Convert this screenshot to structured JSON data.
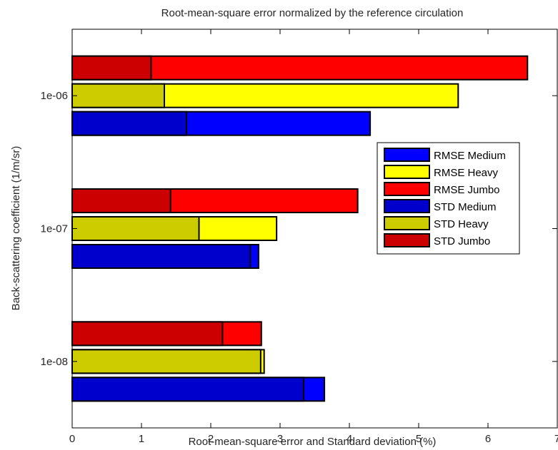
{
  "chart_data": {
    "type": "bar",
    "orientation": "horizontal",
    "title": "Root-mean-square error normalized by the reference circulation",
    "xlabel": "Root-mean-square error and Standard deviation (%)",
    "ylabel": "Back-scattering coefficient (1/m/sr)",
    "xlim": [
      0,
      7
    ],
    "xticks": [
      0,
      1,
      2,
      3,
      4,
      5,
      6,
      7
    ],
    "categories": [
      "1e-08",
      "1e-07",
      "1e-06"
    ],
    "grid": false,
    "legend_position": "right",
    "series": [
      {
        "name": "RMSE Medium",
        "color": "#0000ff",
        "values": [
          3.64,
          2.69,
          4.3
        ]
      },
      {
        "name": "RMSE Heavy",
        "color": "#ffff00",
        "values": [
          2.77,
          2.95,
          5.57
        ]
      },
      {
        "name": "RMSE Jumbo",
        "color": "#ff0000",
        "values": [
          2.73,
          4.12,
          6.57
        ]
      },
      {
        "name": "STD Medium",
        "color": "#0000cc",
        "values": [
          3.34,
          2.57,
          1.65
        ]
      },
      {
        "name": "STD Heavy",
        "color": "#cccc00",
        "values": [
          2.72,
          1.83,
          1.33
        ]
      },
      {
        "name": "STD Jumbo",
        "color": "#cc0000",
        "values": [
          2.17,
          1.42,
          1.14
        ]
      }
    ]
  }
}
